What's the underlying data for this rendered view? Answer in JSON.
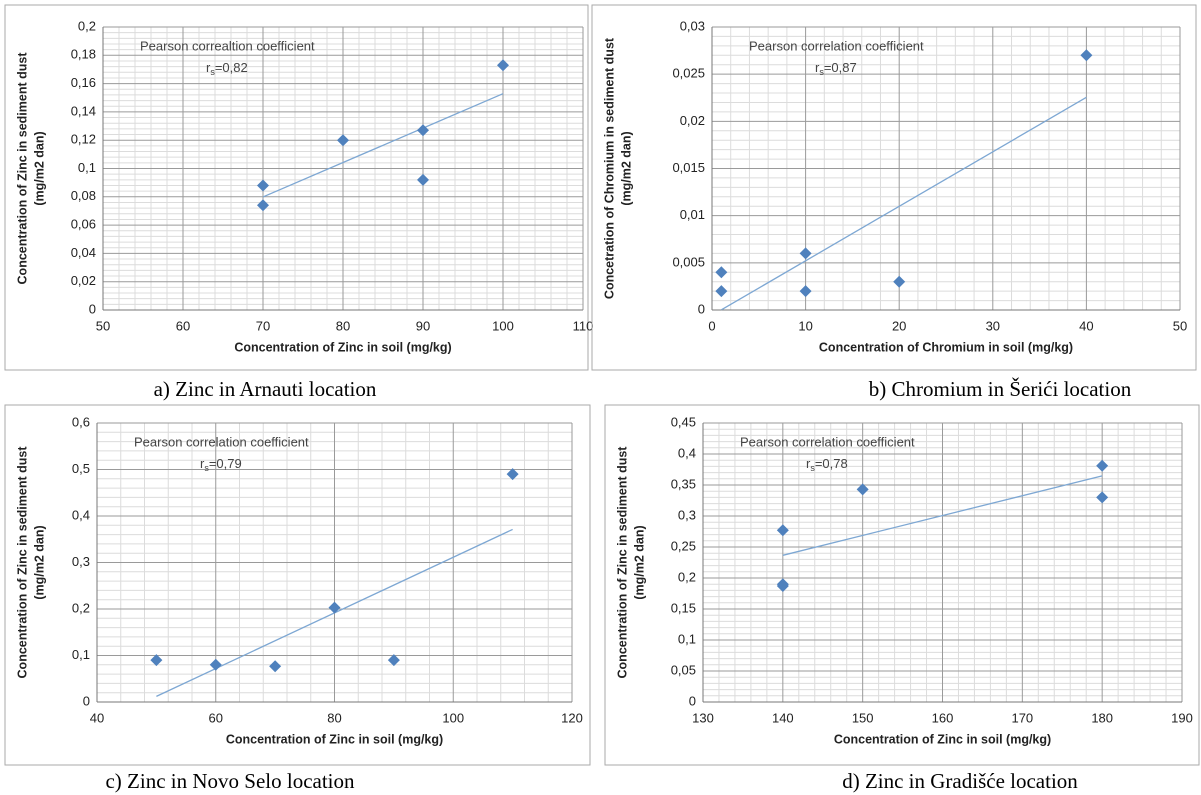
{
  "chart_data": [
    {
      "type": "scatter",
      "caption": "a) Zinc in Arnauti location",
      "annotation": "Pearson correaltion coefficient",
      "coefficient_symbol": "r",
      "coefficient_subscript": "s",
      "coefficient_text": "=0,82",
      "xlabel": "Concentration of Zinc in soil (mg/kg)",
      "ylabel": [
        "Concentration of Zinc in sediment dust",
        "(mg/m2 dan)"
      ],
      "x": [
        70,
        70,
        80,
        90,
        90,
        100
      ],
      "y": [
        0.088,
        0.074,
        0.12,
        0.127,
        0.092,
        0.173
      ],
      "color": "#4f81bd",
      "xlim": [
        50,
        110
      ],
      "xticks": [
        50,
        60,
        70,
        80,
        90,
        100,
        110
      ],
      "ylim": [
        0,
        0.2
      ],
      "yticks": [
        0,
        {
          "value": 0.02,
          "label": "0,02"
        },
        {
          "value": 0.04,
          "label": "0,04"
        },
        {
          "value": 0.06,
          "label": "0,06"
        },
        {
          "value": 0.08,
          "label": "0,08"
        },
        {
          "value": 0.1,
          "label": "0,1"
        },
        {
          "value": 0.12,
          "label": "0,12"
        },
        {
          "value": 0.14,
          "label": "0,14"
        },
        {
          "value": 0.16,
          "label": "0,16"
        },
        {
          "value": 0.18,
          "label": "0,18"
        },
        {
          "value": 0.2,
          "label": "0,2"
        }
      ],
      "grid": true,
      "minor_grid": true,
      "trendline": true
    },
    {
      "type": "scatter",
      "caption": "b) Chromium in Šerići location",
      "annotation": "Pearson correlation coefficient",
      "coefficient_symbol": "r",
      "coefficient_subscript": "s",
      "coefficient_text": "=0,87",
      "xlabel": "Concentration of Chromium in soil (mg/kg)",
      "ylabel": [
        "Concetration of Chromium in sediment dust",
        "(mg/m2 dan)"
      ],
      "x": [
        1,
        1,
        10,
        10,
        20,
        40
      ],
      "y": [
        0.004,
        0.002,
        0.006,
        0.002,
        0.003,
        0.027
      ],
      "color": "#4f81bd",
      "xlim": [
        0,
        50
      ],
      "xticks": [
        0,
        10,
        20,
        30,
        40,
        50
      ],
      "ylim": [
        0,
        0.03
      ],
      "yticks": [
        0,
        {
          "value": 0.005,
          "label": "0,005"
        },
        {
          "value": 0.01,
          "label": "0,01"
        },
        {
          "value": 0.015,
          "label": "0,015"
        },
        {
          "value": 0.02,
          "label": "0,02"
        },
        {
          "value": 0.025,
          "label": "0,025"
        },
        {
          "value": 0.03,
          "label": "0,03"
        }
      ],
      "grid": true,
      "minor_grid": true,
      "trendline": true
    },
    {
      "type": "scatter",
      "caption": "c) Zinc in Novo Selo location",
      "annotation": "Pearson correlation coefficient",
      "coefficient_symbol": "r",
      "coefficient_subscript": "s",
      "coefficient_text": "=0,79",
      "xlabel": "Concentration of Zinc in soil (mg/kg)",
      "ylabel": [
        "Concentration of Zinc in sediment dust",
        "(mg/m2 dan)"
      ],
      "x": [
        50,
        60,
        70,
        80,
        90,
        110
      ],
      "y": [
        0.09,
        0.08,
        0.077,
        0.203,
        0.09,
        0.49
      ],
      "color": "#4f81bd",
      "xlim": [
        40,
        120
      ],
      "xticks": [
        40,
        60,
        80,
        100,
        120
      ],
      "ylim": [
        0,
        0.6
      ],
      "yticks": [
        0,
        {
          "value": 0.1,
          "label": "0,1"
        },
        {
          "value": 0.2,
          "label": "0,2"
        },
        {
          "value": 0.3,
          "label": "0,3"
        },
        {
          "value": 0.4,
          "label": "0,4"
        },
        {
          "value": 0.5,
          "label": "0,5"
        },
        {
          "value": 0.6,
          "label": "0,6"
        }
      ],
      "grid": true,
      "minor_grid": true,
      "trendline": true
    },
    {
      "type": "scatter",
      "caption": "d) Zinc in Gradišće location",
      "annotation": "Pearson correlation coefficient",
      "coefficient_symbol": "r",
      "coefficient_subscript": "s",
      "coefficient_text": "=0,78",
      "xlabel": "Concentration of Zinc in soil (mg/kg)",
      "ylabel": [
        "Concentration of Zinc in sediment dust",
        "(mg/m2 dan)"
      ],
      "x": [
        140,
        140,
        140,
        150,
        180,
        180
      ],
      "y": [
        0.277,
        0.19,
        0.187,
        0.343,
        0.381,
        0.33
      ],
      "color": "#4f81bd",
      "xlim": [
        130,
        190
      ],
      "xticks": [
        130,
        140,
        150,
        160,
        170,
        180,
        190
      ],
      "ylim": [
        0,
        0.45
      ],
      "yticks": [
        0,
        {
          "value": 0.05,
          "label": "0,05"
        },
        {
          "value": 0.1,
          "label": "0,1"
        },
        {
          "value": 0.15,
          "label": "0,15"
        },
        {
          "value": 0.2,
          "label": "0,2"
        },
        {
          "value": 0.25,
          "label": "0,25"
        },
        {
          "value": 0.3,
          "label": "0,3"
        },
        {
          "value": 0.35,
          "label": "0,35"
        },
        {
          "value": 0.4,
          "label": "0,4"
        },
        {
          "value": 0.45,
          "label": "0,45"
        }
      ],
      "grid": true,
      "minor_grid": true,
      "trendline": true
    }
  ]
}
